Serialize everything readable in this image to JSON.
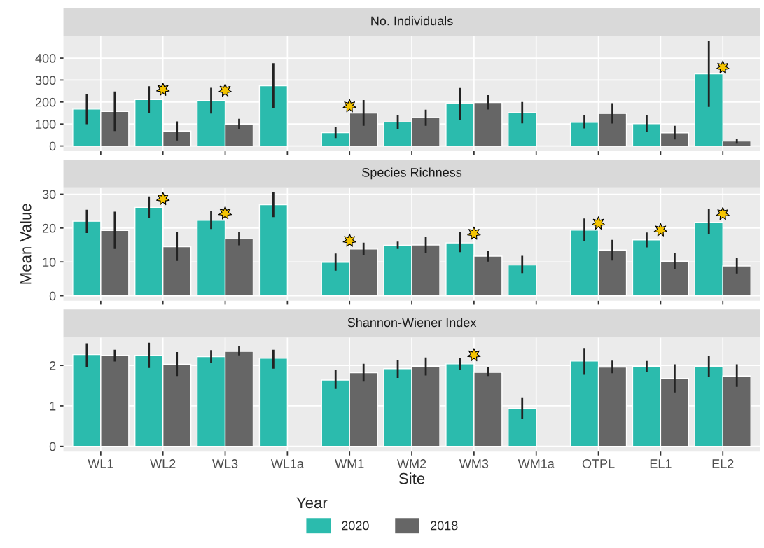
{
  "chart_data": [
    {
      "type": "bar",
      "title": "No. Individuals",
      "legend_title": "Year",
      "legend": "bottom",
      "categories": [
        "WL1",
        "WL2",
        "WL3",
        "WL1a",
        "WM1",
        "WM2",
        "WM3",
        "WM1a",
        "OTPL",
        "EL1",
        "EL2"
      ],
      "ylim": [
        -24,
        500
      ],
      "yticks": [
        0,
        100,
        200,
        300,
        400
      ],
      "grid": true,
      "tick_labels": "y",
      "series": [
        {
          "name": "2020",
          "color": "#2bbbad",
          "values": [
            168,
            211,
            207,
            274,
            61,
            109,
            193,
            152,
            108,
            101,
            328
          ],
          "errors": [
            [
              99,
              237
            ],
            [
              151,
              272
            ],
            [
              148,
              265
            ],
            [
              173,
              377
            ],
            [
              36,
              85
            ],
            [
              78,
              141
            ],
            [
              120,
              264
            ],
            [
              103,
              200
            ],
            [
              80,
              139
            ],
            [
              63,
              141
            ],
            [
              178,
              477
            ]
          ]
        },
        {
          "name": "2018",
          "color": "#666666",
          "values": [
            157,
            68,
            99,
            null,
            150,
            129,
            198,
            null,
            148,
            60,
            22
          ],
          "errors": [
            [
              68,
              248
            ],
            [
              25,
              112
            ],
            [
              76,
              124
            ],
            null,
            [
              92,
              209
            ],
            [
              92,
              165
            ],
            [
              166,
              231
            ],
            null,
            [
              102,
              195
            ],
            [
              30,
              92
            ],
            [
              11,
              34
            ]
          ]
        },
        {
          "type": "scatter",
          "color": "#f5c400",
          "marker": "star",
          "x": [
            "WL2",
            "WL3",
            "WM1",
            "EL2"
          ],
          "values": [
            257,
            253,
            182,
            358
          ]
        }
      ]
    },
    {
      "type": "bar",
      "title": "Species Richness",
      "ylabel": "Mean Value",
      "categories": [
        "WL1",
        "WL2",
        "WL3",
        "WL1a",
        "WM1",
        "WM2",
        "WM3",
        "WM1a",
        "OTPL",
        "EL1",
        "EL2"
      ],
      "ylim": [
        -1.5,
        32
      ],
      "yticks": [
        0,
        10,
        20,
        30
      ],
      "grid": true,
      "tick_labels": "y",
      "series": [
        {
          "name": "2020",
          "color": "#2bbbad",
          "values": [
            22.0,
            26.1,
            22.3,
            26.9,
            9.9,
            14.9,
            15.6,
            9.1,
            19.4,
            16.5,
            21.7
          ],
          "errors": [
            [
              18.5,
              25.4
            ],
            [
              23.0,
              29.3
            ],
            [
              19.7,
              25.0
            ],
            [
              23.2,
              30.5
            ],
            [
              7.4,
              12.5
            ],
            [
              13.8,
              16.0
            ],
            [
              12.9,
              18.8
            ],
            [
              6.7,
              11.8
            ],
            [
              16.1,
              22.8
            ],
            [
              14.3,
              18.7
            ],
            [
              18.1,
              25.6
            ]
          ]
        },
        {
          "name": "2018",
          "color": "#666666",
          "values": [
            19.3,
            14.5,
            16.8,
            null,
            13.8,
            15.0,
            11.7,
            null,
            13.5,
            10.2,
            8.8
          ],
          "errors": [
            [
              13.8,
              24.8
            ],
            [
              10.3,
              18.8
            ],
            [
              14.9,
              18.8
            ],
            null,
            [
              12.0,
              15.7
            ],
            [
              12.7,
              17.5
            ],
            [
              10.1,
              13.3
            ],
            null,
            [
              10.4,
              16.5
            ],
            [
              8.0,
              12.6
            ],
            [
              6.6,
              11.1
            ]
          ]
        },
        {
          "type": "scatter",
          "color": "#f5c400",
          "marker": "star",
          "x": [
            "WL2",
            "WL3",
            "WM1",
            "WM3",
            "OTPL",
            "EL1",
            "EL2"
          ],
          "values": [
            28.6,
            24.4,
            16.3,
            18.4,
            21.4,
            19.4,
            24.2
          ]
        }
      ]
    },
    {
      "type": "bar",
      "title": "Shannon-Wiener Index",
      "xlabel": "Site",
      "categories": [
        "WL1",
        "WL2",
        "WL3",
        "WL1a",
        "WM1",
        "WM2",
        "WM3",
        "WM1a",
        "OTPL",
        "EL1",
        "EL2"
      ],
      "ylim": [
        -0.13,
        2.69
      ],
      "yticks": [
        0,
        1,
        2
      ],
      "grid": true,
      "series": [
        {
          "name": "2020",
          "color": "#2bbbad",
          "values": [
            2.27,
            2.25,
            2.22,
            2.18,
            1.64,
            1.92,
            2.04,
            0.94,
            2.11,
            1.98,
            1.97
          ],
          "errors": [
            [
              1.96,
              2.55
            ],
            [
              1.94,
              2.56
            ],
            [
              2.06,
              2.38
            ],
            [
              1.92,
              2.39
            ],
            [
              1.42,
              1.88
            ],
            [
              1.69,
              2.14
            ],
            [
              1.9,
              2.18
            ],
            [
              0.68,
              1.21
            ],
            [
              1.77,
              2.43
            ],
            [
              1.84,
              2.11
            ],
            [
              1.71,
              2.24
            ]
          ]
        },
        {
          "name": "2018",
          "color": "#666666",
          "values": [
            2.25,
            2.03,
            2.35,
            null,
            1.82,
            1.98,
            1.83,
            null,
            1.96,
            1.68,
            1.74
          ],
          "errors": [
            [
              2.1,
              2.39
            ],
            [
              1.74,
              2.33
            ],
            [
              2.25,
              2.48
            ],
            null,
            [
              1.6,
              2.04
            ],
            [
              1.75,
              2.2
            ],
            [
              1.74,
              1.95
            ],
            null,
            [
              1.81,
              2.12
            ],
            [
              1.33,
              2.03
            ],
            [
              1.47,
              2.03
            ]
          ]
        },
        {
          "type": "scatter",
          "color": "#f5c400",
          "marker": "star",
          "x": [
            "WM3"
          ],
          "values": [
            2.26
          ]
        }
      ]
    }
  ]
}
